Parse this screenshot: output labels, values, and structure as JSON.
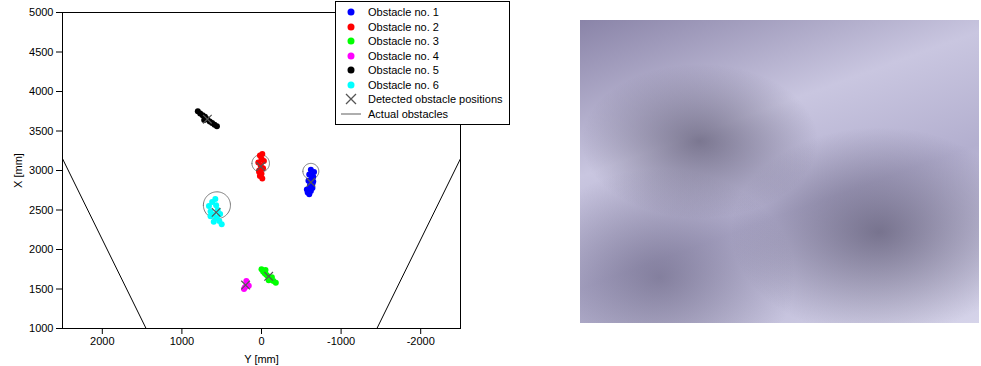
{
  "chart_data": {
    "type": "scatter",
    "x_label": "Y [mm]",
    "y_label": "X [mm]",
    "xlim": [
      2500,
      -2500
    ],
    "xticks": [
      2000,
      1000,
      0,
      -1000,
      -2000
    ],
    "ylim": [
      1000,
      5000
    ],
    "yticks": [
      1000,
      1500,
      2000,
      2500,
      3000,
      3500,
      4000,
      4500,
      5000
    ],
    "legend": "upper right",
    "series": [
      {
        "name": "Obstacle no. 1",
        "color": "#0000ff",
        "marker": "circle",
        "x": [
          -600,
          -620,
          -640,
          -580,
          -610,
          -650,
          -630,
          -600,
          -660,
          -590,
          -620,
          -640,
          -570,
          -610,
          -650
        ],
        "y": [
          2700,
          2740,
          2780,
          2720,
          2820,
          2860,
          2900,
          2950,
          2980,
          2870,
          3010,
          2830,
          2760,
          2790,
          2920
        ]
      },
      {
        "name": "Obstacle no. 2",
        "color": "#ff0000",
        "marker": "circle",
        "x": [
          -10,
          20,
          0,
          30,
          -20,
          10,
          40,
          -30,
          0,
          20,
          -10,
          30
        ],
        "y": [
          2900,
          2930,
          2960,
          3000,
          3030,
          3060,
          3100,
          3120,
          3150,
          3190,
          3210,
          2980
        ]
      },
      {
        "name": "Obstacle no. 3",
        "color": "#00ff00",
        "marker": "circle",
        "x": [
          -180,
          -150,
          -120,
          -100,
          -80,
          -60,
          -40,
          -20,
          0,
          -130,
          -90,
          -50
        ],
        "y": [
          1580,
          1600,
          1620,
          1640,
          1660,
          1680,
          1700,
          1720,
          1750,
          1650,
          1610,
          1740
        ]
      },
      {
        "name": "Obstacle no. 4",
        "color": "#ff00ff",
        "marker": "circle",
        "x": [
          220,
          200,
          180,
          190,
          160,
          210
        ],
        "y": [
          1500,
          1530,
          1560,
          1600,
          1540,
          1520
        ]
      },
      {
        "name": "Obstacle no. 5",
        "color": "#000000",
        "marker": "circle",
        "x": [
          800,
          770,
          740,
          710,
          680,
          650,
          620,
          590,
          560,
          720
        ],
        "y": [
          3750,
          3720,
          3700,
          3680,
          3650,
          3620,
          3600,
          3580,
          3560,
          3640
        ]
      },
      {
        "name": "Obstacle no. 6",
        "color": "#00ffff",
        "marker": "circle",
        "x": [
          500,
          530,
          560,
          600,
          640,
          660,
          620,
          580,
          550,
          520,
          600,
          640,
          570
        ],
        "y": [
          2320,
          2360,
          2400,
          2440,
          2480,
          2550,
          2600,
          2640,
          2500,
          2450,
          2350,
          2420,
          2560
        ]
      }
    ],
    "detected": {
      "name": "Detected obstacle positions",
      "color": "#555555",
      "marker": "x",
      "x": [
        -620,
        10,
        -90,
        200,
        680,
        570
      ],
      "y": [
        2850,
        3050,
        1660,
        1550,
        3650,
        2470
      ]
    },
    "actual": {
      "name": "Actual obstacles",
      "color": "#777777",
      "line_style": "solid",
      "x": [
        -620,
        10,
        560
      ],
      "y": [
        2990,
        3090,
        2560
      ],
      "r": [
        100,
        110,
        170
      ]
    },
    "lines": [
      {
        "color": "#000000",
        "x": [
          1450,
          2500
        ],
        "y": [
          1000,
          3150
        ]
      },
      {
        "color": "#000000",
        "x": [
          -1450,
          -2500
        ],
        "y": [
          1000,
          3150
        ]
      }
    ]
  }
}
